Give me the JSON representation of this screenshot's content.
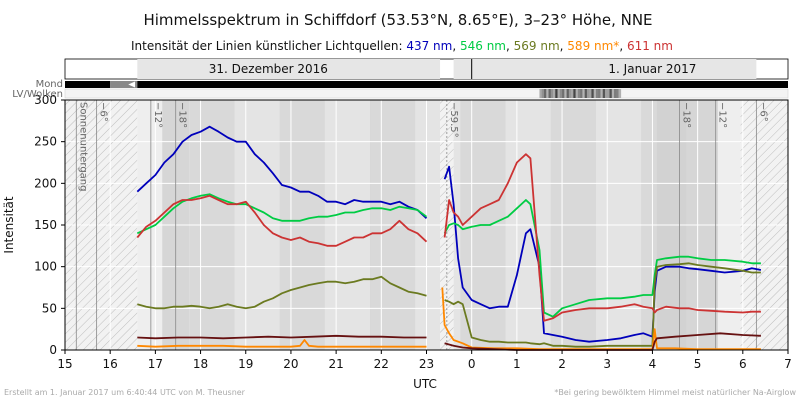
{
  "chart_data": {
    "type": "line",
    "title": "Himmelsspektrum in Schiffdorf (53.53°N, 8.65°E), 3–23° Höhe, NNE",
    "subtitle_prefix": "Intensität der Linien künstlicher Lichtquellen:",
    "xlabel": "UTC",
    "ylabel": "Intensität",
    "ylim": [
      0,
      300
    ],
    "yticks": [
      0,
      50,
      100,
      150,
      200,
      250,
      300
    ],
    "xticks": [
      "15",
      "16",
      "17",
      "18",
      "19",
      "20",
      "21",
      "22",
      "23",
      "0",
      "1",
      "2",
      "3",
      "4",
      "5",
      "6",
      "7"
    ],
    "grid": true,
    "date_labels": [
      "31. Dezember 2016",
      "1. Januar 2017"
    ],
    "bar_labels": {
      "moon": "Mond",
      "clouds": "LV/Wolken"
    },
    "annotations": [
      "Sonnenuntergang",
      "−6°",
      "−12°",
      "−18°",
      "−59.5°",
      "−18°",
      "−12°",
      "−6°"
    ],
    "footer_left": "Erstellt am 1. Januar 2017 um 6:40:44 UTC von M. Theusner",
    "footer_right": "*Bei gering bewölktem Himmel meist natürlicher Na-Airglow",
    "series": [
      {
        "name": "437 nm",
        "color": "#0000bb",
        "x": [
          16.6,
          16.8,
          17.0,
          17.2,
          17.4,
          17.6,
          17.8,
          18.0,
          18.2,
          18.4,
          18.6,
          18.8,
          19.0,
          19.2,
          19.4,
          19.6,
          19.8,
          20.0,
          20.2,
          20.4,
          20.6,
          20.8,
          21.0,
          21.2,
          21.4,
          21.6,
          21.8,
          22.0,
          22.2,
          22.4,
          22.6,
          22.8,
          23.0,
          23.3,
          23.4,
          23.5,
          23.6,
          23.7,
          23.8,
          24.0,
          24.2,
          24.4,
          24.6,
          24.8,
          25.0,
          25.2,
          25.3,
          25.5,
          25.6,
          25.8,
          26.0,
          26.3,
          26.6,
          27.0,
          27.3,
          27.6,
          27.8,
          28.0,
          28.05,
          28.1,
          28.3,
          28.6,
          28.8,
          29.0,
          29.3,
          29.6,
          30.0,
          30.2,
          30.4
        ],
        "values": [
          190,
          200,
          210,
          225,
          235,
          250,
          258,
          262,
          268,
          262,
          255,
          250,
          250,
          235,
          225,
          212,
          198,
          195,
          190,
          190,
          185,
          178,
          178,
          175,
          180,
          178,
          178,
          178,
          175,
          178,
          172,
          168,
          158,
          null,
          205,
          220,
          175,
          110,
          75,
          60,
          55,
          50,
          52,
          52,
          90,
          140,
          145,
          100,
          20,
          18,
          16,
          12,
          10,
          12,
          14,
          18,
          20,
          16,
          70,
          95,
          100,
          100,
          98,
          97,
          95,
          93,
          95,
          98,
          96
        ]
      },
      {
        "name": "546 nm",
        "color": "#00cc44",
        "x": [
          16.6,
          16.8,
          17.0,
          17.2,
          17.4,
          17.6,
          17.8,
          18.0,
          18.2,
          18.4,
          18.6,
          18.8,
          19.0,
          19.2,
          19.4,
          19.6,
          19.8,
          20.0,
          20.2,
          20.4,
          20.6,
          20.8,
          21.0,
          21.2,
          21.4,
          21.6,
          21.8,
          22.0,
          22.2,
          22.4,
          22.6,
          22.8,
          23.0,
          23.3,
          23.4,
          23.5,
          23.6,
          23.7,
          23.8,
          24.0,
          24.2,
          24.4,
          24.6,
          24.8,
          25.0,
          25.2,
          25.3,
          25.5,
          25.6,
          25.8,
          26.0,
          26.3,
          26.6,
          27.0,
          27.3,
          27.6,
          27.8,
          28.0,
          28.05,
          28.1,
          28.3,
          28.6,
          28.8,
          29.0,
          29.3,
          29.6,
          30.0,
          30.2,
          30.4
        ],
        "values": [
          140,
          145,
          150,
          160,
          170,
          178,
          182,
          185,
          187,
          182,
          178,
          175,
          175,
          170,
          165,
          158,
          155,
          155,
          155,
          158,
          160,
          160,
          162,
          165,
          165,
          168,
          170,
          170,
          168,
          172,
          170,
          168,
          160,
          null,
          140,
          150,
          152,
          150,
          145,
          148,
          150,
          150,
          155,
          160,
          170,
          180,
          175,
          120,
          45,
          40,
          50,
          55,
          60,
          62,
          62,
          64,
          66,
          66,
          90,
          108,
          110,
          112,
          112,
          110,
          108,
          108,
          106,
          104,
          104
        ]
      },
      {
        "name": "569 nm",
        "color": "#6b7a20",
        "x": [
          16.6,
          16.8,
          17.0,
          17.2,
          17.4,
          17.6,
          17.8,
          18.0,
          18.2,
          18.4,
          18.6,
          18.8,
          19.0,
          19.2,
          19.4,
          19.6,
          19.8,
          20.0,
          20.2,
          20.4,
          20.6,
          20.8,
          21.0,
          21.2,
          21.4,
          21.6,
          21.8,
          22.0,
          22.2,
          22.4,
          22.6,
          22.8,
          23.0,
          23.3,
          23.4,
          23.5,
          23.6,
          23.7,
          23.8,
          24.0,
          24.2,
          24.4,
          24.6,
          24.8,
          25.0,
          25.2,
          25.3,
          25.5,
          25.6,
          25.8,
          26.0,
          26.3,
          26.6,
          27.0,
          27.3,
          27.6,
          27.8,
          28.0,
          28.05,
          28.1,
          28.3,
          28.6,
          28.8,
          29.0,
          29.3,
          29.6,
          30.0,
          30.2,
          30.4
        ],
        "values": [
          55,
          52,
          50,
          50,
          52,
          52,
          53,
          52,
          50,
          52,
          55,
          52,
          50,
          52,
          58,
          62,
          68,
          72,
          75,
          78,
          80,
          82,
          82,
          80,
          82,
          85,
          85,
          88,
          80,
          75,
          70,
          68,
          65,
          null,
          60,
          58,
          55,
          58,
          55,
          15,
          12,
          10,
          10,
          9,
          9,
          9,
          8,
          7,
          8,
          5,
          5,
          4,
          4,
          5,
          5,
          5,
          5,
          5,
          80,
          100,
          102,
          103,
          104,
          102,
          100,
          98,
          95,
          93,
          93
        ]
      },
      {
        "name": "589 nm",
        "color": "#ff8800",
        "x": [
          16.6,
          17.0,
          17.5,
          18.0,
          18.5,
          19.0,
          19.5,
          20.0,
          20.2,
          20.3,
          20.4,
          20.6,
          21.0,
          21.5,
          22.0,
          22.5,
          23.0,
          23.3,
          23.35,
          23.4,
          23.5,
          23.6,
          23.8,
          24.0,
          24.5,
          25.0,
          25.5,
          26.0,
          26.5,
          27.0,
          27.5,
          28.0,
          28.05,
          28.1,
          28.5,
          29.0,
          29.5,
          30.0,
          30.4
        ],
        "values": [
          5,
          4,
          5,
          5,
          5,
          4,
          4,
          4,
          5,
          12,
          5,
          4,
          4,
          4,
          4,
          4,
          4,
          null,
          75,
          30,
          20,
          12,
          8,
          3,
          2,
          2,
          1,
          1,
          1,
          1,
          1,
          1,
          25,
          2,
          2,
          1,
          1,
          1,
          1
        ]
      },
      {
        "name": "611 nm",
        "color": "#cc3333",
        "x": [
          16.6,
          16.8,
          17.0,
          17.2,
          17.4,
          17.6,
          17.8,
          18.0,
          18.2,
          18.4,
          18.6,
          18.8,
          19.0,
          19.2,
          19.4,
          19.6,
          19.8,
          20.0,
          20.2,
          20.4,
          20.6,
          20.8,
          21.0,
          21.2,
          21.4,
          21.6,
          21.8,
          22.0,
          22.2,
          22.4,
          22.6,
          22.8,
          23.0,
          23.3,
          23.4,
          23.5,
          23.6,
          23.7,
          23.8,
          24.0,
          24.2,
          24.4,
          24.6,
          24.8,
          25.0,
          25.2,
          25.3,
          25.5,
          25.6,
          25.8,
          26.0,
          26.3,
          26.6,
          27.0,
          27.3,
          27.6,
          27.8,
          28.0,
          28.05,
          28.1,
          28.3,
          28.6,
          28.8,
          29.0,
          29.3,
          29.6,
          30.0,
          30.2,
          30.4
        ],
        "values": [
          135,
          148,
          155,
          165,
          175,
          180,
          180,
          182,
          185,
          180,
          175,
          175,
          178,
          165,
          150,
          140,
          135,
          132,
          135,
          130,
          128,
          125,
          125,
          130,
          135,
          135,
          140,
          140,
          145,
          155,
          145,
          140,
          130,
          null,
          135,
          180,
          165,
          160,
          150,
          160,
          170,
          175,
          180,
          200,
          225,
          235,
          230,
          90,
          35,
          38,
          45,
          48,
          50,
          50,
          52,
          55,
          52,
          50,
          45,
          48,
          52,
          50,
          50,
          48,
          47,
          46,
          45,
          46,
          46
        ]
      },
      {
        "name": "",
        "color": "#661111",
        "x": [
          16.6,
          17.0,
          17.5,
          18.0,
          18.5,
          19.0,
          19.5,
          20.0,
          20.5,
          21.0,
          21.5,
          22.0,
          22.5,
          23.0,
          23.3,
          23.4,
          23.6,
          23.8,
          24.0,
          24.5,
          25.0,
          25.5,
          26.0,
          26.5,
          27.0,
          27.5,
          28.0,
          28.05,
          28.1,
          28.5,
          29.0,
          29.5,
          30.0,
          30.4
        ],
        "values": [
          15,
          14,
          15,
          15,
          14,
          15,
          16,
          15,
          16,
          17,
          16,
          16,
          15,
          15,
          null,
          8,
          5,
          3,
          2,
          1,
          0,
          0,
          0,
          0,
          0,
          0,
          0,
          10,
          14,
          16,
          18,
          20,
          18,
          17
        ]
      }
    ]
  }
}
